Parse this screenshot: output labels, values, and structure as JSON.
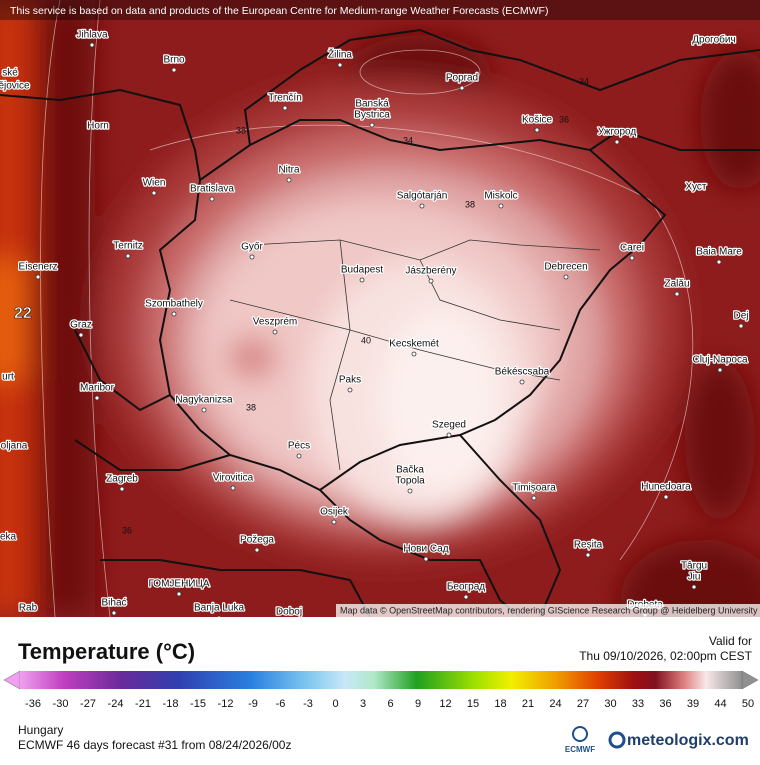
{
  "header": {
    "notice": "This service is based on data and products of the European Centre for Medium-range Weather Forecasts (ECMWF)"
  },
  "map": {
    "attribution": "Map data © OpenStreetMap contributors, rendering GIScience Research Group @ Heidelberg University",
    "cities": [
      "Jihlava",
      "Brno",
      "Žilina",
      "Poprad",
      "Дрогобич",
      "Trenčín",
      "Banská",
      "Bystrica",
      "Košice",
      "Ужгород",
      "Horn",
      "Nitra",
      "Wien",
      "Bratislava",
      "Salgótarján",
      "Miskolc",
      "Хуст",
      "Ternitz",
      "Győr",
      "Carei",
      "Baia Mare",
      "Eisenerz",
      "Budapest",
      "Jászberény",
      "Debrecen",
      "Szombathely",
      "Veszprém",
      "Zalău",
      "Graz",
      "Dej",
      "Kecskemét",
      "Cluj-Napoca",
      "Paks",
      "Békéscsaba",
      "Maribor",
      "Nagykanizsa",
      "Pécs",
      "Szeged",
      "Zagreb",
      "Virovitica",
      "Bačka",
      "Topola",
      "Timișoara",
      "Hunedoara",
      "Osijek",
      "Požega",
      "Нови Сад",
      "Reșita",
      "Târgu",
      "Jiu",
      "ГОМЈЕНИЦА",
      "Bihać",
      "Banja Luka",
      "Doboj",
      "Београд",
      "Drobeta",
      "Rab",
      "ské",
      "ějovice",
      "urt",
      "oljana",
      "eka"
    ],
    "isotherm_labels": [
      38,
      34,
      36,
      34,
      38,
      40,
      38,
      36
    ],
    "edge_value": 22
  },
  "legend": {
    "title": "Temperature (°C)",
    "ticks": [
      -36,
      -30,
      -27,
      -24,
      -21,
      -18,
      -15,
      -12,
      -9,
      -6,
      -3,
      0,
      3,
      6,
      9,
      12,
      15,
      18,
      21,
      24,
      27,
      30,
      33,
      36,
      39,
      44,
      50
    ]
  },
  "info": {
    "valid_label": "Valid for",
    "valid_time": "Thu 09/10/2026, 02:00pm CEST",
    "region": "Hungary",
    "forecast": "ECMWF 46 days forecast #31 from  08/24/2026/00z",
    "ecmwf_logo": "ECMWF",
    "brand": "meteologix.com"
  }
}
